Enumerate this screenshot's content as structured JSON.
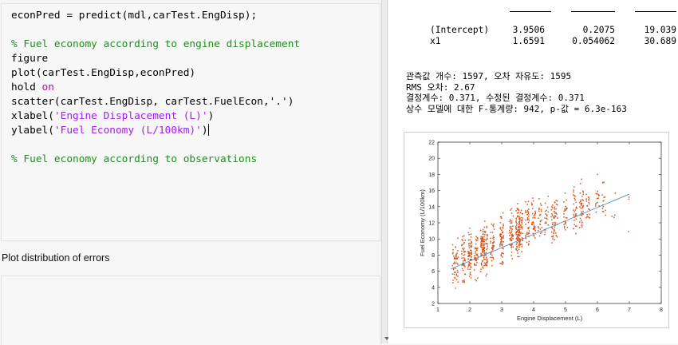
{
  "code_lines": [
    {
      "type": "plain",
      "text": "econPred = predict(mdl,carTest.EngDisp);"
    },
    {
      "type": "blank",
      "text": ""
    },
    {
      "type": "comment",
      "text": "% Fuel economy according to engine displacement"
    },
    {
      "type": "plain",
      "text": "figure"
    },
    {
      "type": "plain",
      "text": "plot(carTest.EngDisp,econPred)"
    },
    {
      "type": "hold",
      "kw": "hold",
      "arg": "on"
    },
    {
      "type": "plain",
      "text": "scatter(carTest.EngDisp, carTest.FuelEcon,'.')"
    },
    {
      "type": "label",
      "fn": "xlabel(",
      "str": "'Engine Displacement (L)'",
      "end": ")"
    },
    {
      "type": "label",
      "fn": "ylabel(",
      "str": "'Fuel Economy (L/100km)'",
      "end": ")"
    },
    {
      "type": "blank",
      "text": ""
    },
    {
      "type": "comment",
      "text": "% Fuel economy according to observations"
    }
  ],
  "section_title": "Plot distribution of errors",
  "coef_table": {
    "rows": [
      {
        "name": "(Intercept)",
        "estimate": "3.9506",
        "se": "0.2075",
        "tstat": "19.039"
      },
      {
        "name": "x1",
        "estimate": "1.6591",
        "se": "0.054062",
        "tstat": "30.689"
      }
    ]
  },
  "stats": [
    "관측값 개수: 1597, 오차 자유도: 1595",
    "RMS 오차: 2.67",
    "결정계수: 0.371, 수정된 결정계수: 0.371",
    "상수 모델에 대한 F-통계량: 942, p-값 = 6.3e-163"
  ],
  "chart_data": {
    "type": "scatter",
    "xlabel": "Engine Displacement (L)",
    "ylabel": "Fuel Economy (L/100km)",
    "xlim": [
      1,
      8
    ],
    "ylim": [
      2,
      22
    ],
    "xticks": [
      1,
      2,
      3,
      4,
      5,
      6,
      7,
      8
    ],
    "yticks": [
      2,
      4,
      6,
      8,
      10,
      12,
      14,
      16,
      18,
      20,
      22
    ],
    "fit_line": {
      "x": [
        1.4,
        7.0
      ],
      "y": [
        6.27,
        15.56
      ],
      "color": "#4a90c8"
    },
    "scatter_color": "#d95319",
    "clusters": [
      {
        "x": 1.5,
        "y": 6.5,
        "n": 25
      },
      {
        "x": 1.6,
        "y": 7.0,
        "n": 25
      },
      {
        "x": 1.8,
        "y": 7.5,
        "n": 45
      },
      {
        "x": 2.0,
        "y": 8.0,
        "n": 70
      },
      {
        "x": 2.2,
        "y": 8.3,
        "n": 40
      },
      {
        "x": 2.4,
        "y": 8.8,
        "n": 70
      },
      {
        "x": 2.5,
        "y": 9.0,
        "n": 50
      },
      {
        "x": 2.7,
        "y": 9.2,
        "n": 40
      },
      {
        "x": 3.0,
        "y": 10.0,
        "n": 60
      },
      {
        "x": 3.3,
        "y": 10.5,
        "n": 50
      },
      {
        "x": 3.5,
        "y": 10.8,
        "n": 80
      },
      {
        "x": 3.6,
        "y": 11.0,
        "n": 50
      },
      {
        "x": 3.8,
        "y": 11.5,
        "n": 40
      },
      {
        "x": 4.0,
        "y": 12.0,
        "n": 40
      },
      {
        "x": 4.2,
        "y": 12.2,
        "n": 25
      },
      {
        "x": 4.4,
        "y": 12.5,
        "n": 20
      },
      {
        "x": 4.6,
        "y": 12.0,
        "n": 30
      },
      {
        "x": 4.7,
        "y": 12.5,
        "n": 30
      },
      {
        "x": 5.0,
        "y": 13.0,
        "n": 25
      },
      {
        "x": 5.3,
        "y": 13.5,
        "n": 30
      },
      {
        "x": 5.5,
        "y": 13.8,
        "n": 40
      },
      {
        "x": 5.7,
        "y": 14.0,
        "n": 20
      },
      {
        "x": 6.0,
        "y": 14.5,
        "n": 15
      },
      {
        "x": 6.2,
        "y": 15.0,
        "n": 15
      },
      {
        "x": 6.5,
        "y": 14.5,
        "n": 4
      },
      {
        "x": 7.0,
        "y": 13.0,
        "n": 3
      }
    ],
    "spread": 2.4
  }
}
